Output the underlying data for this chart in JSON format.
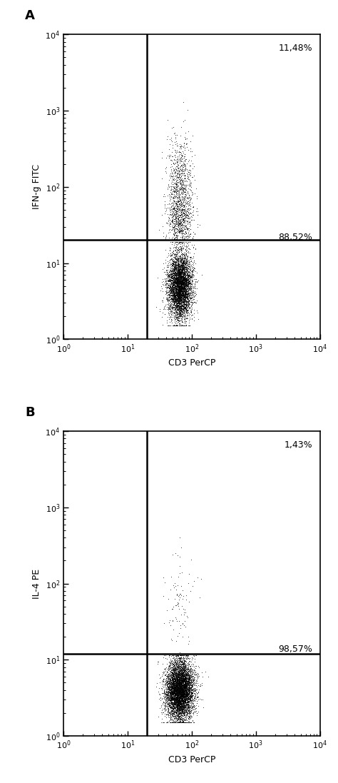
{
  "panel_A": {
    "label": "A",
    "xlabel": "CD3 PerCP",
    "ylabel": "IFN-g FITC",
    "gate_x": 20,
    "gate_y": 20,
    "pct_upper_right": "11,48%",
    "pct_lower_right": "88,52%",
    "n_total": 6000
  },
  "panel_B": {
    "label": "B",
    "xlabel": "CD3 PerCP",
    "ylabel": "IL-4 PE",
    "gate_x": 20,
    "gate_y": 12,
    "pct_upper_right": "1,43%",
    "pct_lower_right": "98,57%",
    "n_total": 7000
  },
  "xlim": [
    1,
    10000
  ],
  "ylim": [
    1,
    10000
  ],
  "bg_color": "#ffffff",
  "dot_color": "#000000",
  "dot_size": 1.2,
  "line_color": "#000000",
  "line_width": 1.8,
  "font_size_label": 9,
  "font_size_pct": 9,
  "font_size_panel_label": 13,
  "tick_labelsize": 8
}
